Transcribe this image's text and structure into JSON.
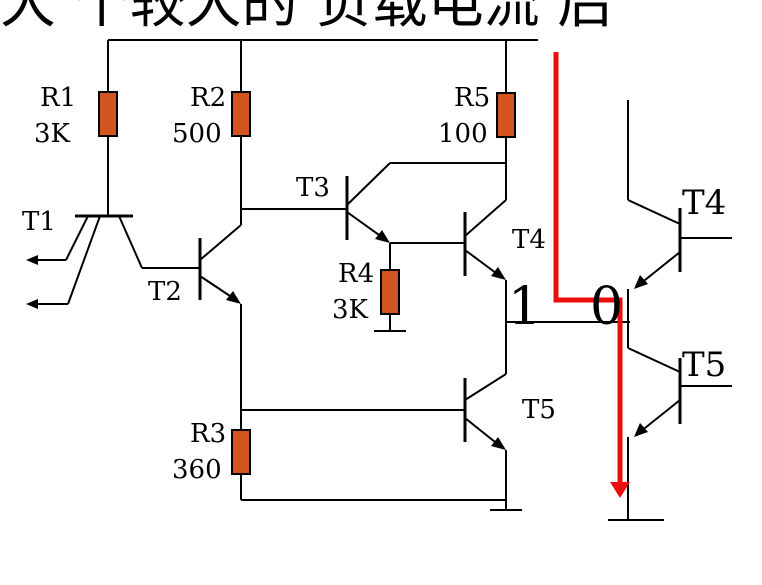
{
  "heading_fragment": "大 个较大的 负载电流 后",
  "colors": {
    "wire": "#000000",
    "resistor_fill": "#d2541f",
    "current_path": "#ee0d0d"
  },
  "resistors": [
    {
      "name": "R1",
      "value": "3K"
    },
    {
      "name": "R2",
      "value": "500"
    },
    {
      "name": "R5",
      "value": "100"
    },
    {
      "name": "R4",
      "value": "3K"
    },
    {
      "name": "R3",
      "value": "360"
    }
  ],
  "transistors": {
    "t1": "T1",
    "t2": "T2",
    "t3": "T3",
    "t4": "T4",
    "t5": "T5",
    "t4_right": "T4",
    "t5_right": "T5"
  },
  "logic_levels": {
    "left": "1",
    "right": "0"
  }
}
